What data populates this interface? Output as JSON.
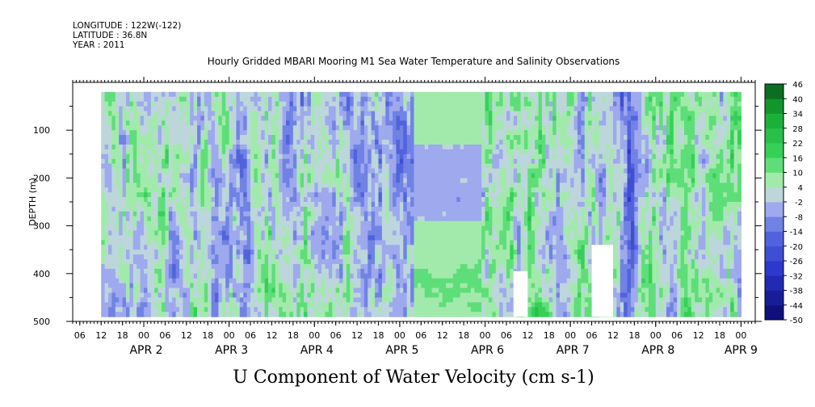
{
  "header": {
    "longitude": "LONGITUDE : 122W(-122)",
    "latitude": "LATITUDE : 36.8N",
    "year": "YEAR : 2011"
  },
  "chart_data": {
    "type": "heatmap",
    "title": "Hourly Gridded MBARI Mooring M1 Sea Water Temperature and Salinity Observations",
    "xlabel": "U Component of Water Velocity (cm s-1)",
    "ylabel": "DEPTH (m)",
    "y_axis": {
      "range_m": [
        0,
        500
      ],
      "inverted": true,
      "ticks": [
        100,
        200,
        300,
        400,
        500
      ],
      "minor_ticks": [
        50,
        150,
        250,
        350,
        450
      ]
    },
    "x_axis": {
      "range_hours_from_apr2_00": [
        -20,
        172
      ],
      "data_range_hours_from_apr2_00": [
        -12,
        168
      ],
      "hour_ticks": [
        {
          "h": -18,
          "label": "06"
        },
        {
          "h": -12,
          "label": "12"
        },
        {
          "h": -6,
          "label": "18"
        },
        {
          "h": 0,
          "label": "00"
        },
        {
          "h": 6,
          "label": "06"
        },
        {
          "h": 12,
          "label": "12"
        },
        {
          "h": 18,
          "label": "18"
        },
        {
          "h": 24,
          "label": "00"
        },
        {
          "h": 30,
          "label": "06"
        },
        {
          "h": 36,
          "label": "12"
        },
        {
          "h": 42,
          "label": "18"
        },
        {
          "h": 48,
          "label": "00"
        },
        {
          "h": 54,
          "label": "06"
        },
        {
          "h": 60,
          "label": "12"
        },
        {
          "h": 66,
          "label": "18"
        },
        {
          "h": 72,
          "label": "00"
        },
        {
          "h": 78,
          "label": "06"
        },
        {
          "h": 84,
          "label": "12"
        },
        {
          "h": 90,
          "label": "18"
        },
        {
          "h": 96,
          "label": "00"
        },
        {
          "h": 102,
          "label": "06"
        },
        {
          "h": 108,
          "label": "12"
        },
        {
          "h": 114,
          "label": "18"
        },
        {
          "h": 120,
          "label": "00"
        },
        {
          "h": 126,
          "label": "06"
        },
        {
          "h": 132,
          "label": "12"
        },
        {
          "h": 138,
          "label": "18"
        },
        {
          "h": 144,
          "label": "00"
        },
        {
          "h": 150,
          "label": "06"
        },
        {
          "h": 156,
          "label": "12"
        },
        {
          "h": 162,
          "label": "18"
        },
        {
          "h": 168,
          "label": "00"
        }
      ],
      "date_labels": [
        {
          "h": 0,
          "label": "APR  2"
        },
        {
          "h": 24,
          "label": "APR  3"
        },
        {
          "h": 48,
          "label": "APR  4"
        },
        {
          "h": 72,
          "label": "APR  5"
        },
        {
          "h": 96,
          "label": "APR  6"
        },
        {
          "h": 120,
          "label": "APR  7"
        },
        {
          "h": 144,
          "label": "APR  8"
        },
        {
          "h": 168,
          "label": "APR 9"
        }
      ]
    },
    "colorbar": {
      "levels": [
        -50,
        -44,
        -38,
        -32,
        -26,
        -20,
        -14,
        -8,
        -2,
        4,
        10,
        16,
        22,
        28,
        34,
        40,
        46
      ],
      "labels": [
        "46",
        "40",
        "34",
        "28",
        "22",
        "16",
        "10",
        "4",
        "-2",
        "-8",
        "-14",
        "-20",
        "-26",
        "-32",
        "-38",
        "-44",
        "-50"
      ],
      "color_stops": [
        {
          "v": -50,
          "color": "#0a0a6e"
        },
        {
          "v": -30,
          "color": "#2a35c8"
        },
        {
          "v": -14,
          "color": "#5a6ee0"
        },
        {
          "v": -2,
          "color": "#b4bcf2"
        },
        {
          "v": 4,
          "color": "#c4f0c4"
        },
        {
          "v": 16,
          "color": "#3cd860"
        },
        {
          "v": 34,
          "color": "#14a832"
        },
        {
          "v": 46,
          "color": "#0a5a1e"
        }
      ]
    },
    "time_periods": [
      {
        "hours": [
          -12,
          66
        ],
        "depth_m": [
          20,
          490
        ],
        "character": "alternating weak negative and positive vertical bands"
      },
      {
        "hours": [
          66,
          76
        ],
        "depth_m": [
          20,
          490
        ],
        "character": "mostly weak negative"
      },
      {
        "hours": [
          76,
          95
        ],
        "depth_m": [
          20,
          490
        ],
        "character": "smooth horizontal layers, positive near 50-130 m and 290-490 m, negative 130-290 m"
      },
      {
        "hours": [
          95,
          168
        ],
        "depth_m": [
          20,
          490
        ],
        "character": "strong positive bands with negative bands, strongest negative near hour 136"
      }
    ],
    "missing_regions": [
      {
        "hours": [
          104,
          108
        ],
        "depth_m": [
          395,
          490
        ]
      },
      {
        "hours": [
          126,
          132
        ],
        "depth_m": [
          340,
          490
        ]
      }
    ]
  }
}
